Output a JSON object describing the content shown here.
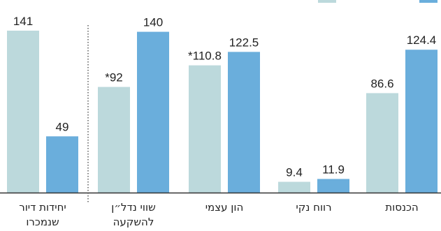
{
  "chart_data": {
    "type": "bar",
    "categories": [
      "הכנסות",
      "רווח נקי",
      "הון עצמי",
      "שווי נדל\"ן להשקעה",
      "יחידות דיור שנמכרו"
    ],
    "category_lines": [
      [
        "הכנסות"
      ],
      [
        "רווח נקי"
      ],
      [
        "הון עצמי"
      ],
      [
        "שווי נדל״ן",
        "להשקעה"
      ],
      [
        "יחידות דיור",
        "שנמכרו"
      ]
    ],
    "series": [
      {
        "color": "#bcd9dc",
        "values": [
          86.6,
          9.4,
          110.8,
          92,
          141
        ],
        "labels": [
          "86.6",
          "9.4",
          "*110.8",
          "*92",
          "141"
        ]
      },
      {
        "color": "#6aaedc",
        "values": [
          124.4,
          11.9,
          122.5,
          140,
          49
        ],
        "labels": [
          "124.4",
          "11.9",
          "122.5",
          "140",
          "49"
        ]
      }
    ],
    "direction": "rtl",
    "separator_before_category_index": 4,
    "legend": "top-right",
    "grid": false,
    "ylim": [
      0,
      145
    ],
    "title": "",
    "xlabel": "",
    "ylabel": ""
  },
  "colors": {
    "baseline": "#333333",
    "separator": "#333333",
    "text": "#222222"
  }
}
